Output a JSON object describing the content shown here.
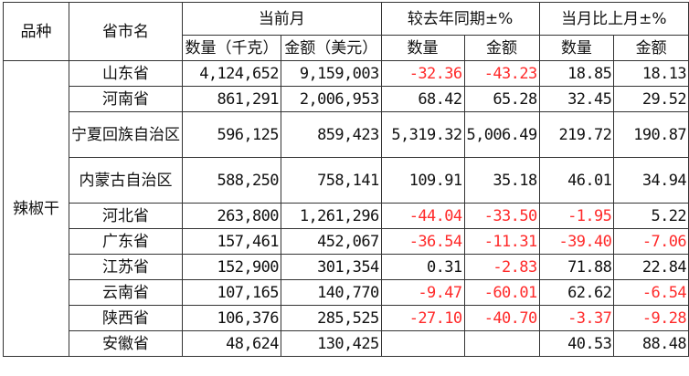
{
  "table": {
    "headers": {
      "variety": "品种",
      "province": "省市名",
      "current_month": "当前月",
      "yoy": "较去年同期±%",
      "mom": "当月比上月±%",
      "qty_unit": "数量（千克）",
      "amt_unit": "金额（美元）",
      "qty": "数量",
      "amt": "金额",
      "qty2": "数量",
      "amt2": "金额"
    },
    "category": "辣椒干",
    "rows": [
      {
        "province": "山东省",
        "qty": "4,124,652",
        "amt": "9,159,003",
        "yoy_qty": "-32.36",
        "yoy_amt": "-43.23",
        "mom_qty": "18.85",
        "mom_amt": "18.13"
      },
      {
        "province": "河南省",
        "qty": "861,291",
        "amt": "2,006,953",
        "yoy_qty": "68.42",
        "yoy_amt": "65.28",
        "mom_qty": "32.45",
        "mom_amt": "29.52"
      },
      {
        "province": "宁夏回族自治区",
        "qty": "596,125",
        "amt": "859,423",
        "yoy_qty": "5,319.32",
        "yoy_amt": "5,006.49",
        "mom_qty": "219.72",
        "mom_amt": "190.87"
      },
      {
        "province": "内蒙古自治区",
        "qty": "588,250",
        "amt": "758,141",
        "yoy_qty": "109.91",
        "yoy_amt": "35.18",
        "mom_qty": "46.01",
        "mom_amt": "34.94"
      },
      {
        "province": "河北省",
        "qty": "263,800",
        "amt": "1,261,296",
        "yoy_qty": "-44.04",
        "yoy_amt": "-33.50",
        "mom_qty": "-1.95",
        "mom_amt": "5.22"
      },
      {
        "province": "广东省",
        "qty": "157,461",
        "amt": "452,067",
        "yoy_qty": "-36.54",
        "yoy_amt": "-11.31",
        "mom_qty": "-39.40",
        "mom_amt": "-7.06"
      },
      {
        "province": "江苏省",
        "qty": "152,900",
        "amt": "301,354",
        "yoy_qty": "0.31",
        "yoy_amt": "-2.83",
        "mom_qty": "71.88",
        "mom_amt": "22.84"
      },
      {
        "province": "云南省",
        "qty": "107,165",
        "amt": "140,770",
        "yoy_qty": "-9.47",
        "yoy_amt": "-60.01",
        "mom_qty": "62.62",
        "mom_amt": "-6.54"
      },
      {
        "province": "陕西省",
        "qty": "106,376",
        "amt": "285,525",
        "yoy_qty": "-27.10",
        "yoy_amt": "-40.70",
        "mom_qty": "-3.37",
        "mom_amt": "-9.28"
      },
      {
        "province": "安徽省",
        "qty": "48,624",
        "amt": "130,425",
        "yoy_qty": "",
        "yoy_amt": "",
        "mom_qty": "40.53",
        "mom_amt": "88.48"
      }
    ]
  },
  "colors": {
    "negative": "#ff2a2a",
    "text": "#111111",
    "border": "#333333"
  }
}
